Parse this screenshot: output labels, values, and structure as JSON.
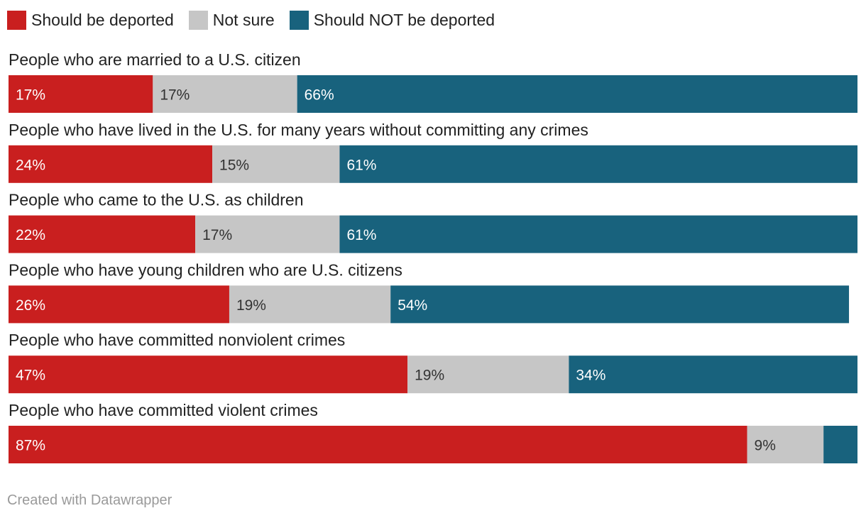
{
  "colors": {
    "deported": "#c91f1f",
    "not_sure": "#c6c6c6",
    "not_deported": "#18627d"
  },
  "legend": [
    {
      "label": "Should be deported",
      "color_key": "deported"
    },
    {
      "label": "Not sure",
      "color_key": "not_sure"
    },
    {
      "label": "Should NOT be deported",
      "color_key": "not_deported"
    }
  ],
  "chart_data": {
    "type": "bar",
    "orientation": "horizontal",
    "stacked": true,
    "categories": [
      "People who are married to a U.S. citizen",
      "People who have lived in the U.S. for many years without committing any crimes",
      "People who came to the U.S. as children",
      "People who have young children who are U.S. citizens",
      "People who have committed nonviolent crimes",
      "People who have committed violent crimes"
    ],
    "series": [
      {
        "name": "Should be deported",
        "values": [
          17,
          24,
          22,
          26,
          47,
          87
        ],
        "labels": [
          "17%",
          "24%",
          "22%",
          "26%",
          "47%",
          "87%"
        ]
      },
      {
        "name": "Not sure",
        "values": [
          17,
          15,
          17,
          19,
          19,
          9
        ],
        "labels": [
          "17%",
          "15%",
          "17%",
          "19%",
          "19%",
          "9%"
        ]
      },
      {
        "name": "Should NOT be deported",
        "values": [
          66,
          61,
          61,
          54,
          34,
          4
        ],
        "labels": [
          "66%",
          "61%",
          "61%",
          "54%",
          "34%",
          ""
        ]
      }
    ],
    "xlim": [
      0,
      100
    ],
    "legend_position": "top-left",
    "grid": false
  },
  "footer": "Created with Datawrapper"
}
